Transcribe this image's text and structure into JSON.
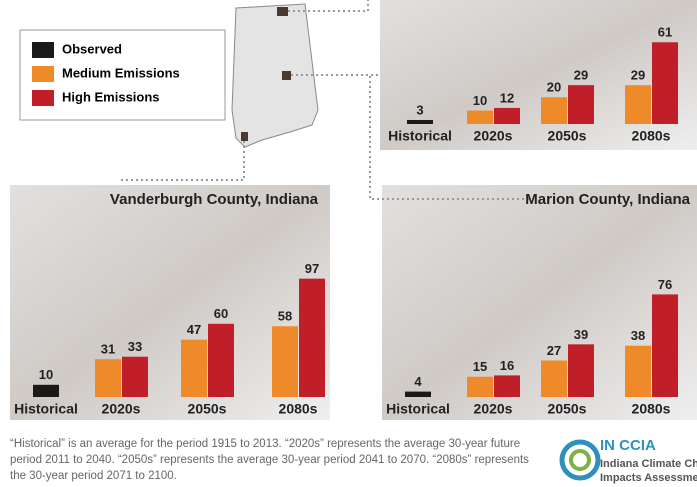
{
  "chart_data": [
    {
      "type": "bar",
      "categories": [
        "Historical",
        "2020s",
        "2050s",
        "2080s"
      ],
      "series": [
        {
          "name": "Observed",
          "color": "#1a1a1a",
          "values": [
            3,
            null,
            null,
            null
          ]
        },
        {
          "name": "Medium Emissions",
          "color": "#ef8a2b",
          "values": [
            null,
            10,
            20,
            29
          ]
        },
        {
          "name": "High Emissions",
          "color": "#c01f2a",
          "values": [
            null,
            12,
            29,
            61
          ]
        }
      ]
    },
    {
      "type": "bar",
      "title": "Vanderburgh County, Indiana",
      "categories": [
        "Historical",
        "2020s",
        "2050s",
        "2080s"
      ],
      "series": [
        {
          "values": [
            10,
            null,
            null,
            null
          ]
        },
        {
          "values": [
            null,
            31,
            47,
            58
          ]
        },
        {
          "values": [
            null,
            33,
            60,
            97
          ]
        }
      ]
    },
    {
      "type": "bar",
      "title": "Marion County, Indiana",
      "categories": [
        "Historical",
        "2020s",
        "2050s",
        "2080s"
      ],
      "series": [
        {
          "values": [
            4,
            null,
            null,
            null
          ]
        },
        {
          "values": [
            null,
            15,
            27,
            38
          ]
        },
        {
          "values": [
            null,
            16,
            39,
            76
          ]
        }
      ]
    }
  ],
  "footnote": "“Historical” is an average for the period 1915 to 2013. “2020s” represents the average 30-year future period 2011 to 2040. “2050s” represents the average 30-year period 2041 to 2070. “2080s” represents the 30-year period 2071 to 2100.",
  "logo": {
    "acronym": "IN CCIA",
    "line1": "Indiana Climate Change",
    "line2": "Impacts Assessment"
  }
}
